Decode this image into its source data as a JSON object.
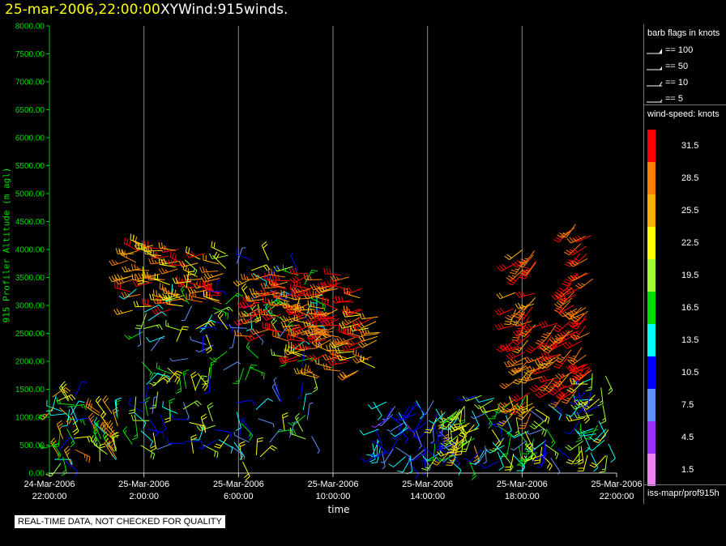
{
  "header": {
    "date_title": "25-mar-2006,22:00:00",
    "product_title": "XYWind:915winds."
  },
  "notice": "REAL-TIME DATA, NOT CHECKED FOR QUALITY",
  "legend": {
    "flags_title": "barb flags in knots",
    "flags": [
      {
        "label": "== 100",
        "knots": 100
      },
      {
        "label": "== 50",
        "knots": 50
      },
      {
        "label": "== 10",
        "knots": 10
      },
      {
        "label": "== 5",
        "knots": 5
      }
    ],
    "speed_title": "wind-speed: knots",
    "speed_bins": [
      {
        "label": "31.5",
        "color": "#ff0000"
      },
      {
        "label": "28.5",
        "color": "#ff7f00"
      },
      {
        "label": "25.5",
        "color": "#ffb000"
      },
      {
        "label": "22.5",
        "color": "#ffff00"
      },
      {
        "label": "19.5",
        "color": "#a0ff30"
      },
      {
        "label": "16.5",
        "color": "#00e000"
      },
      {
        "label": "13.5",
        "color": "#00ffff"
      },
      {
        "label": "10.5",
        "color": "#0000ff"
      },
      {
        "label": "7.5",
        "color": "#5f8fff"
      },
      {
        "label": "4.5",
        "color": "#9a30ff"
      },
      {
        "label": "1.5",
        "color": "#ee82ee"
      }
    ],
    "source": "iss-mapr/prof915h"
  },
  "chart_data": {
    "type": "scatter",
    "subtype": "wind-barb time-height plot",
    "title": "",
    "ylabel": "915 Profiler Altitude (m agl)",
    "xlabel": "time",
    "ylim": [
      0,
      8000
    ],
    "y_ticks": [
      "0.00",
      "500.00",
      "1000.00",
      "1500.00",
      "2000.00",
      "2500.00",
      "3000.00",
      "3500.00",
      "4000.00",
      "4500.00",
      "5000.00",
      "5500.00",
      "6000.00",
      "6500.00",
      "7000.00",
      "7500.00",
      "8000.00"
    ],
    "x_range_hours": [
      0,
      24
    ],
    "x_ticks": [
      {
        "hour": 0,
        "line1": "24-Mar-2006",
        "line2": "22:00:00"
      },
      {
        "hour": 4,
        "line1": "25-Mar-2006",
        "line2": "2:00:00"
      },
      {
        "hour": 8,
        "line1": "25-Mar-2006",
        "line2": "6:00:00"
      },
      {
        "hour": 12,
        "line1": "25-Mar-2006",
        "line2": "10:00:00"
      },
      {
        "hour": 16,
        "line1": "25-Mar-2006",
        "line2": "14:00:00"
      },
      {
        "hour": 20,
        "line1": "25-Mar-2006",
        "line2": "18:00:00"
      },
      {
        "hour": 24,
        "line1": "25-Mar-2006",
        "line2": "22:00:00"
      }
    ],
    "grid": "vertical",
    "legend": "right",
    "wind_regions": [
      {
        "hour": [
          0.1,
          1.1
        ],
        "alt": [
          150,
          1400
        ],
        "speed": [
          10,
          28
        ],
        "dir": [
          20,
          340
        ]
      },
      {
        "hour": [
          2.0,
          3.0
        ],
        "alt": [
          150,
          1100
        ],
        "speed": [
          14,
          28
        ],
        "dir": [
          300,
          360
        ]
      },
      {
        "hour": [
          3.2,
          7.5
        ],
        "alt": [
          2900,
          4100
        ],
        "speed": [
          22,
          33
        ],
        "dir": [
          250,
          300
        ]
      },
      {
        "hour": [
          3.5,
          11.5
        ],
        "alt": [
          200,
          3900
        ],
        "speed": [
          6,
          24
        ],
        "dir": [
          0,
          360
        ]
      },
      {
        "hour": [
          8.5,
          13.5
        ],
        "alt": [
          2300,
          3600
        ],
        "speed": [
          26,
          34
        ],
        "dir": [
          240,
          290
        ]
      },
      {
        "hour": [
          10.5,
          14.0
        ],
        "alt": [
          1700,
          3000
        ],
        "speed": [
          22,
          33
        ],
        "dir": [
          240,
          300
        ]
      },
      {
        "hour": [
          13.5,
          17.5
        ],
        "alt": [
          200,
          1300
        ],
        "speed": [
          5,
          15
        ],
        "dir": [
          120,
          260
        ]
      },
      {
        "hour": [
          16.3,
          18.0
        ],
        "alt": [
          200,
          1200
        ],
        "speed": [
          14,
          27
        ],
        "dir": [
          150,
          250
        ]
      },
      {
        "hour": [
          18.0,
          21.5
        ],
        "alt": [
          200,
          1400
        ],
        "speed": [
          8,
          24
        ],
        "dir": [
          120,
          260
        ]
      },
      {
        "hour": [
          19.6,
          20.6
        ],
        "alt": [
          1000,
          4000
        ],
        "speed": [
          24,
          34
        ],
        "dir": [
          200,
          260
        ]
      },
      {
        "hour": [
          20.8,
          22.3
        ],
        "alt": [
          1400,
          2700
        ],
        "speed": [
          26,
          34
        ],
        "dir": [
          210,
          260
        ]
      },
      {
        "hour": [
          22.0,
          23.0
        ],
        "alt": [
          1800,
          4500
        ],
        "speed": [
          27,
          34
        ],
        "dir": [
          210,
          250
        ]
      },
      {
        "hour": [
          22.3,
          23.7
        ],
        "alt": [
          300,
          1800
        ],
        "speed": [
          10,
          24
        ],
        "dir": [
          150,
          280
        ]
      }
    ]
  }
}
